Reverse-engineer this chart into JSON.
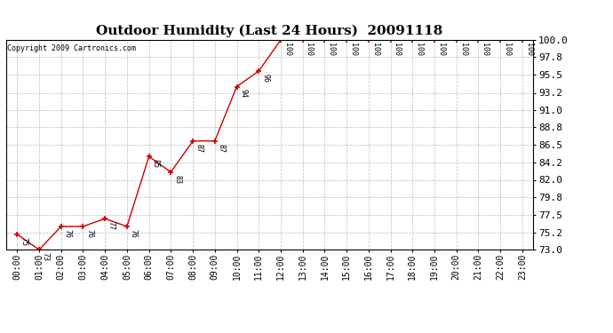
{
  "title": "Outdoor Humidity (Last 24 Hours)  20091118",
  "copyright": "Copyright 2009 Cartronics.com",
  "x_labels": [
    "00:00",
    "01:00",
    "02:00",
    "03:00",
    "04:00",
    "05:00",
    "06:00",
    "07:00",
    "08:00",
    "09:00",
    "10:00",
    "11:00",
    "12:00",
    "13:00",
    "14:00",
    "15:00",
    "16:00",
    "17:00",
    "18:00",
    "19:00",
    "20:00",
    "21:00",
    "22:00",
    "23:00"
  ],
  "x_values": [
    0,
    1,
    2,
    3,
    4,
    5,
    6,
    7,
    8,
    9,
    10,
    11,
    12,
    13,
    14,
    15,
    16,
    17,
    18,
    19,
    20,
    21,
    22,
    23
  ],
  "y_values": [
    75,
    73,
    76,
    76,
    77,
    76,
    85,
    83,
    87,
    87,
    94,
    96,
    100,
    100,
    100,
    100,
    100,
    100,
    100,
    100,
    100,
    100,
    100,
    100
  ],
  "y_labels": [
    "73.0",
    "75.2",
    "77.5",
    "79.8",
    "82.0",
    "84.2",
    "86.5",
    "88.8",
    "91.0",
    "93.2",
    "95.5",
    "97.8",
    "100.0"
  ],
  "y_ticks": [
    73.0,
    75.2,
    77.5,
    79.8,
    82.0,
    84.2,
    86.5,
    88.8,
    91.0,
    93.2,
    95.5,
    97.8,
    100.0
  ],
  "ylim": [
    73.0,
    100.0
  ],
  "line_color": "#cc0000",
  "marker_color": "#cc0000",
  "background_color": "#ffffff",
  "grid_color": "#bbbbbb",
  "title_fontsize": 11,
  "annotation_fontsize": 6,
  "tick_fontsize": 7,
  "ytick_fontsize": 8
}
